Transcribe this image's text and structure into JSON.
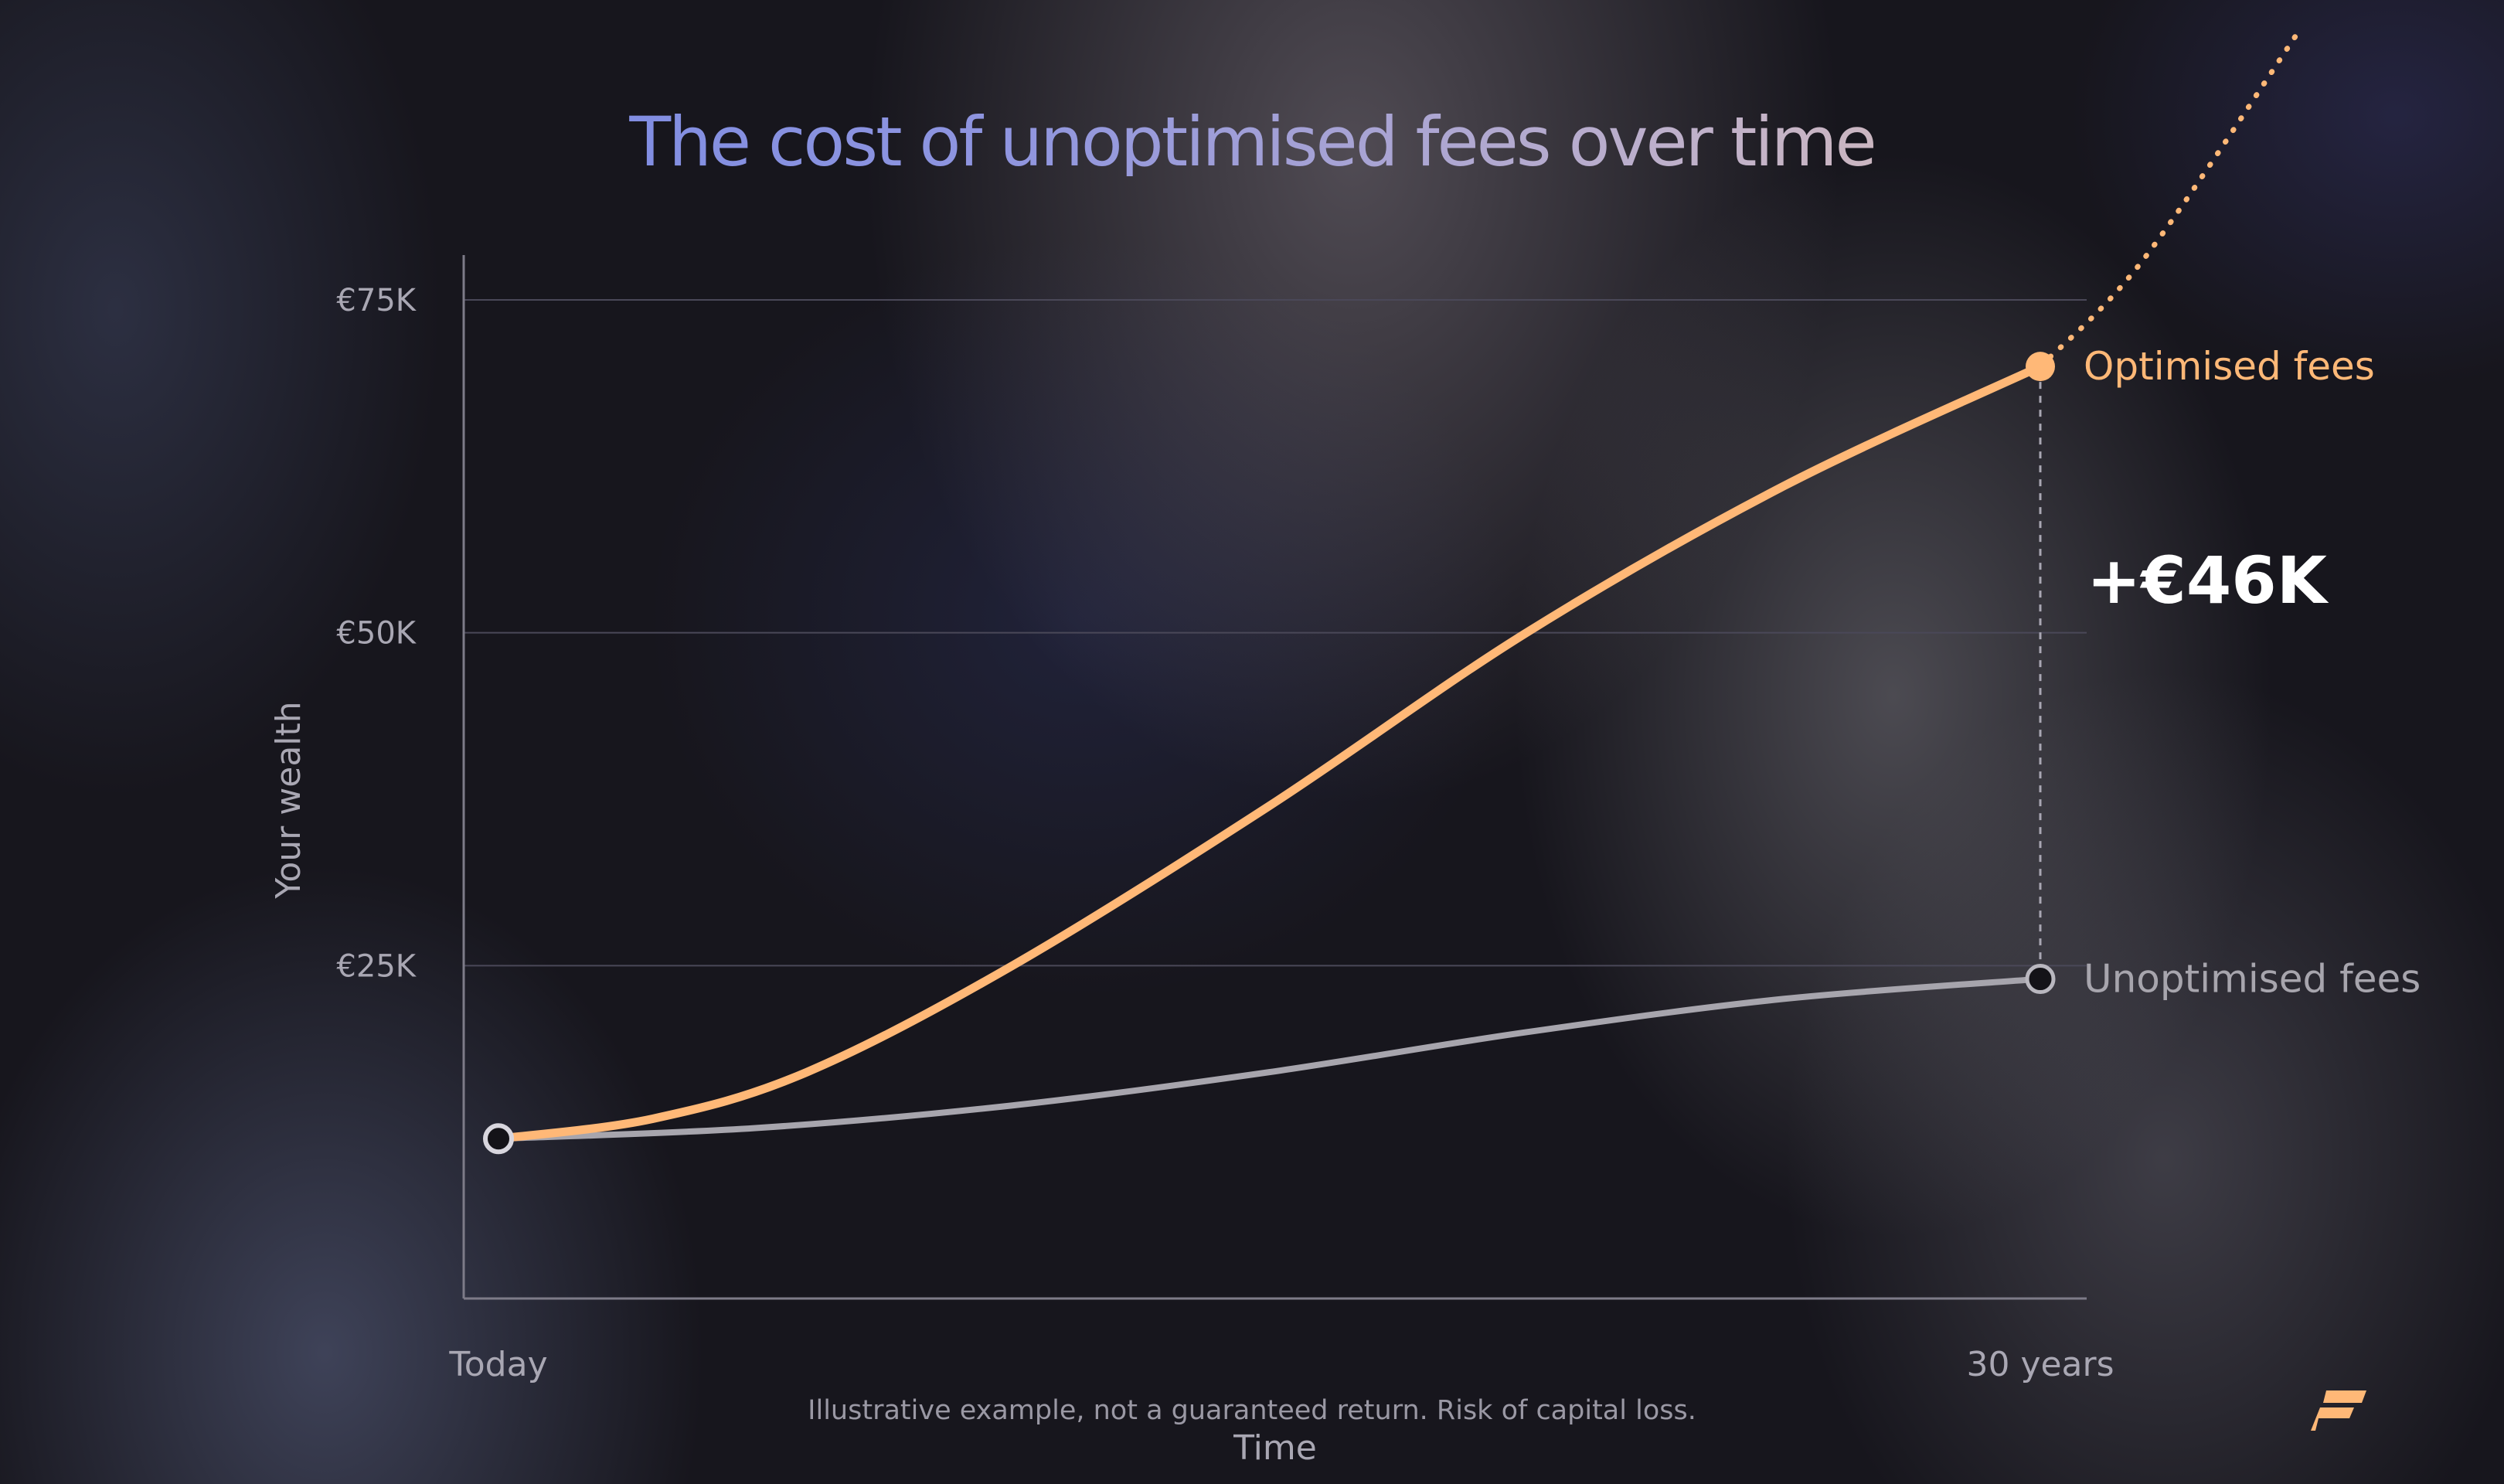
{
  "title": "The cost of unoptimised fees over time",
  "footnote": "Illustrative example, not a guaranteed return. Risk of capital loss.",
  "colors": {
    "optimised": "#ffb877",
    "unoptimised": "#a7a5ad",
    "axis_text": "#a9a7b3",
    "difference_label": "#ffffff",
    "logo": "#ffb877"
  },
  "logo_icon": "brand-logo-icon",
  "chart_data": {
    "type": "line",
    "title": "The cost of unoptimised fees over time",
    "xlabel": "Time",
    "ylabel": "Your wealth",
    "x_tick_labels": [
      "Today",
      "30 years"
    ],
    "y_ticks": [
      {
        "value": 25000,
        "label": "€25K"
      },
      {
        "value": 50000,
        "label": "€50K"
      },
      {
        "value": 75000,
        "label": "€75K"
      }
    ],
    "ylim": [
      0,
      75000
    ],
    "xlim": [
      0,
      30
    ],
    "grid": true,
    "series": [
      {
        "name": "Optimised fees",
        "points": [
          [
            0,
            12000
          ],
          [
            3,
            13500
          ],
          [
            6,
            17000
          ],
          [
            10,
            25000
          ],
          [
            15,
            37000
          ],
          [
            20,
            50000
          ],
          [
            25,
            61000
          ],
          [
            30,
            70000
          ]
        ],
        "projection": [
          [
            30,
            70000
          ],
          [
            32,
            78000
          ],
          [
            35,
            95000
          ]
        ]
      },
      {
        "name": "Unoptimised fees",
        "points": [
          [
            0,
            12000
          ],
          [
            5,
            12800
          ],
          [
            10,
            14500
          ],
          [
            15,
            17000
          ],
          [
            20,
            20000
          ],
          [
            25,
            22500
          ],
          [
            30,
            24000
          ]
        ]
      }
    ],
    "annotations": [
      {
        "text": "+€46K",
        "x": 30
      }
    ]
  }
}
